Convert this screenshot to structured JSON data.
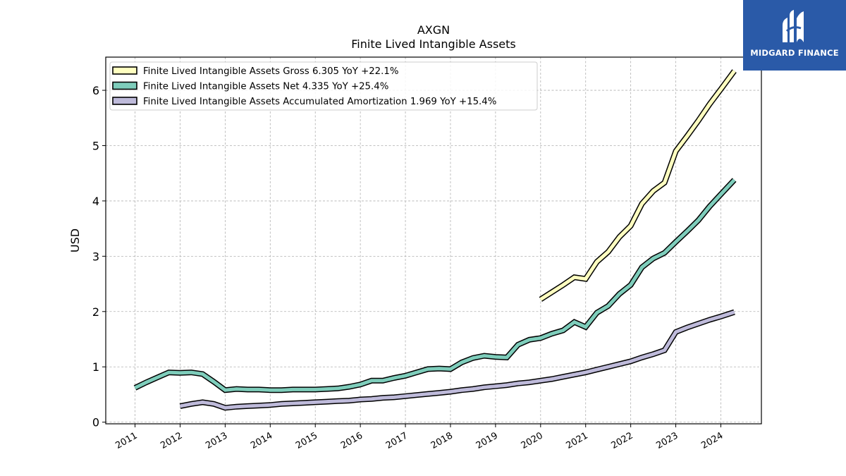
{
  "logo": {
    "text": "MIDGARD FINANCE",
    "bg_color": "#2a5aa8"
  },
  "chart_data": {
    "type": "line",
    "title": "AXGN",
    "subtitle": "Finite Lived Intangible Assets",
    "ylabel": "USD",
    "xlabel": "",
    "ylim": [
      -0.03,
      6.6
    ],
    "xlim": [
      2010.35,
      2024.9
    ],
    "yticks": [
      0,
      1,
      2,
      3,
      4,
      5,
      6
    ],
    "xticks": [
      "2011",
      "2012",
      "2013",
      "2014",
      "2015",
      "2016",
      "2017",
      "2018",
      "2019",
      "2020",
      "2021",
      "2022",
      "2023",
      "2024"
    ],
    "grid": true,
    "legend_position": "upper-left",
    "series": [
      {
        "name": "Finite Lived Intangible Assets Gross",
        "legend_label": "Finite Lived Intangible Assets Gross  6.305 YoY +22.1%",
        "color": "#ffffc0",
        "points": [
          [
            2020.0,
            2.22
          ],
          [
            2020.25,
            2.35
          ],
          [
            2020.5,
            2.48
          ],
          [
            2020.75,
            2.62
          ],
          [
            2021.0,
            2.59
          ],
          [
            2021.25,
            2.9
          ],
          [
            2021.5,
            3.08
          ],
          [
            2021.75,
            3.35
          ],
          [
            2022.0,
            3.55
          ],
          [
            2022.25,
            3.95
          ],
          [
            2022.5,
            4.18
          ],
          [
            2022.75,
            4.33
          ],
          [
            2023.0,
            4.9
          ],
          [
            2023.25,
            5.17
          ],
          [
            2023.5,
            5.45
          ],
          [
            2023.75,
            5.75
          ],
          [
            2024.0,
            6.02
          ],
          [
            2024.3,
            6.35
          ]
        ]
      },
      {
        "name": "Finite Lived Intangible Assets Net",
        "legend_label": "Finite Lived Intangible Assets Net  4.335 YoY +25.4%",
        "color": "#7ecdbb",
        "points": [
          [
            2011.0,
            0.62
          ],
          [
            2011.25,
            0.72
          ],
          [
            2011.5,
            0.81
          ],
          [
            2011.75,
            0.9
          ],
          [
            2012.0,
            0.89
          ],
          [
            2012.25,
            0.9
          ],
          [
            2012.5,
            0.87
          ],
          [
            2012.75,
            0.73
          ],
          [
            2013.0,
            0.58
          ],
          [
            2013.25,
            0.6
          ],
          [
            2013.5,
            0.59
          ],
          [
            2013.75,
            0.59
          ],
          [
            2014.0,
            0.58
          ],
          [
            2014.25,
            0.58
          ],
          [
            2014.5,
            0.59
          ],
          [
            2014.75,
            0.59
          ],
          [
            2015.0,
            0.59
          ],
          [
            2015.25,
            0.6
          ],
          [
            2015.5,
            0.61
          ],
          [
            2015.75,
            0.64
          ],
          [
            2016.0,
            0.68
          ],
          [
            2016.25,
            0.75
          ],
          [
            2016.5,
            0.75
          ],
          [
            2016.75,
            0.8
          ],
          [
            2017.0,
            0.84
          ],
          [
            2017.25,
            0.9
          ],
          [
            2017.5,
            0.96
          ],
          [
            2017.75,
            0.97
          ],
          [
            2018.0,
            0.96
          ],
          [
            2018.25,
            1.08
          ],
          [
            2018.5,
            1.16
          ],
          [
            2018.75,
            1.2
          ],
          [
            2019.0,
            1.18
          ],
          [
            2019.25,
            1.17
          ],
          [
            2019.5,
            1.4
          ],
          [
            2019.75,
            1.49
          ],
          [
            2020.0,
            1.52
          ],
          [
            2020.25,
            1.6
          ],
          [
            2020.5,
            1.66
          ],
          [
            2020.75,
            1.81
          ],
          [
            2021.0,
            1.72
          ],
          [
            2021.25,
            1.98
          ],
          [
            2021.5,
            2.1
          ],
          [
            2021.75,
            2.32
          ],
          [
            2022.0,
            2.48
          ],
          [
            2022.25,
            2.8
          ],
          [
            2022.5,
            2.96
          ],
          [
            2022.75,
            3.06
          ],
          [
            2023.0,
            3.26
          ],
          [
            2023.25,
            3.45
          ],
          [
            2023.5,
            3.65
          ],
          [
            2023.75,
            3.9
          ],
          [
            2024.0,
            4.12
          ],
          [
            2024.3,
            4.38
          ]
        ]
      },
      {
        "name": "Finite Lived Intangible Assets Accumulated Amortization",
        "legend_label": "Finite Lived Intangible Assets Accumulated Amortization  1.969 YoY +15.4%",
        "color": "#bebada",
        "points": [
          [
            2012.0,
            0.29
          ],
          [
            2012.25,
            0.33
          ],
          [
            2012.5,
            0.36
          ],
          [
            2012.75,
            0.33
          ],
          [
            2013.0,
            0.26
          ],
          [
            2013.25,
            0.28
          ],
          [
            2013.5,
            0.29
          ],
          [
            2013.75,
            0.3
          ],
          [
            2014.0,
            0.31
          ],
          [
            2014.25,
            0.33
          ],
          [
            2014.5,
            0.34
          ],
          [
            2014.75,
            0.35
          ],
          [
            2015.0,
            0.36
          ],
          [
            2015.25,
            0.37
          ],
          [
            2015.5,
            0.38
          ],
          [
            2015.75,
            0.39
          ],
          [
            2016.0,
            0.41
          ],
          [
            2016.25,
            0.42
          ],
          [
            2016.5,
            0.44
          ],
          [
            2016.75,
            0.45
          ],
          [
            2017.0,
            0.47
          ],
          [
            2017.25,
            0.49
          ],
          [
            2017.5,
            0.51
          ],
          [
            2017.75,
            0.53
          ],
          [
            2018.0,
            0.55
          ],
          [
            2018.25,
            0.58
          ],
          [
            2018.5,
            0.6
          ],
          [
            2018.75,
            0.63
          ],
          [
            2019.0,
            0.65
          ],
          [
            2019.25,
            0.67
          ],
          [
            2019.5,
            0.7
          ],
          [
            2019.75,
            0.72
          ],
          [
            2020.0,
            0.75
          ],
          [
            2020.25,
            0.78
          ],
          [
            2020.5,
            0.82
          ],
          [
            2020.75,
            0.86
          ],
          [
            2021.0,
            0.9
          ],
          [
            2021.25,
            0.95
          ],
          [
            2021.5,
            1.0
          ],
          [
            2021.75,
            1.05
          ],
          [
            2022.0,
            1.1
          ],
          [
            2022.25,
            1.17
          ],
          [
            2022.5,
            1.23
          ],
          [
            2022.75,
            1.3
          ],
          [
            2023.0,
            1.63
          ],
          [
            2023.25,
            1.71
          ],
          [
            2023.5,
            1.78
          ],
          [
            2023.75,
            1.85
          ],
          [
            2024.0,
            1.91
          ],
          [
            2024.3,
            1.99
          ]
        ]
      }
    ]
  }
}
